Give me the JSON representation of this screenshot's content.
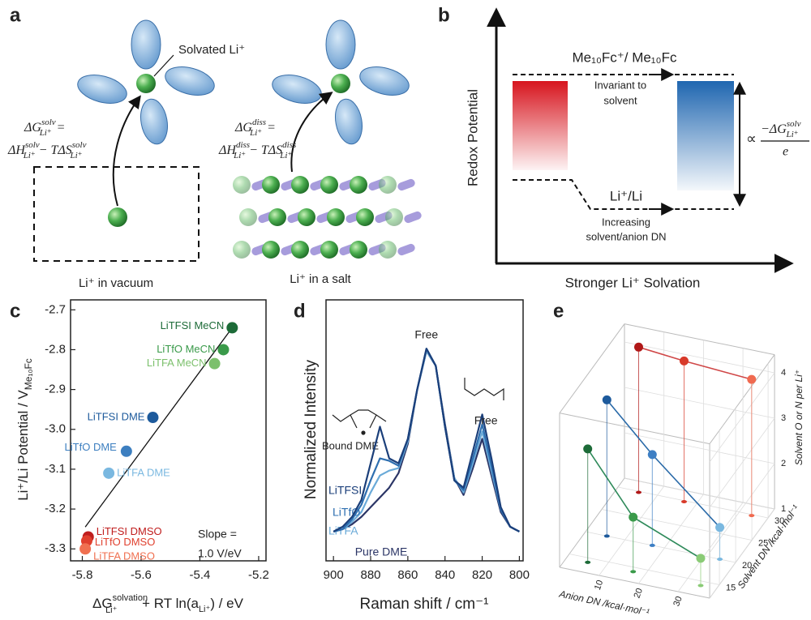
{
  "panel_labels": [
    "a",
    "b",
    "c",
    "d",
    "e"
  ],
  "diagram_a": {
    "solvated_label": "Solvated Li⁺",
    "eq_solv": [
      "ΔG",
      "solv",
      "Li⁺",
      "=",
      "ΔH",
      "solv",
      "Li⁺",
      "− TΔS",
      "solv",
      "Li⁺"
    ],
    "eq_diss": [
      "ΔG",
      "diss",
      "Li⁺",
      "=",
      "ΔH",
      "diss",
      "Li⁺",
      "− TΔS",
      "diss",
      "Li⁺"
    ],
    "vacuum_label": "Li⁺ in vacuum",
    "salt_label": "Li⁺ in a salt"
  },
  "diagram_b": {
    "ylabel": "Redox Potential",
    "xlabel": "Stronger Li⁺ Solvation",
    "top_couple": "Me₁₀Fc⁺/ Me₁₀Fc",
    "top_note": [
      "Invariant to",
      "solvent"
    ],
    "bottom_couple": "Li⁺/Li",
    "bottom_note": [
      "Increasing",
      "solvent/anion DN"
    ],
    "proportional": [
      "∝",
      "−ΔG",
      "solv",
      "Li⁺",
      "e"
    ]
  },
  "chart_data": [
    {
      "type": "scatter",
      "xlabel": [
        "ΔG",
        "solvation",
        "Li⁺",
        " + RT ln(a",
        "Li⁺",
        ") / eV"
      ],
      "ylabel": "Li⁺/Li Potential / V",
      "ylabel_sub": "Me₁₀Fc",
      "xlim": [
        -5.84,
        -5.175
      ],
      "ylim": [
        -3.33,
        -2.675
      ],
      "xticks": [
        -5.8,
        -5.6,
        -5.4,
        -5.2
      ],
      "yticks": [
        -3.3,
        -3.2,
        -3.1,
        {
          "value": -3,
          "label": "-3.0"
        },
        -2.9,
        -2.8,
        -2.7
      ],
      "series": [
        {
          "name": "LiTFSI MeCN",
          "color": "#1d6b38",
          "x": [
            -5.29
          ],
          "values": [
            -2.745
          ]
        },
        {
          "name": "LiTfO MeCN",
          "color": "#3a9a4a",
          "x": [
            -5.32
          ],
          "values": [
            -2.8
          ]
        },
        {
          "name": "LiTFA MeCN",
          "color": "#7cc06c",
          "x": [
            -5.35
          ],
          "values": [
            -2.835
          ]
        },
        {
          "name": "LiTFSI DME",
          "color": "#1d5a9c",
          "x": [
            -5.56
          ],
          "values": [
            -2.97
          ]
        },
        {
          "name": "LiTfO DME",
          "color": "#3d7fc0",
          "x": [
            -5.65
          ],
          "values": [
            -3.055
          ]
        },
        {
          "name": "LiTFA DME",
          "color": "#7ab8e0",
          "x": [
            -5.71
          ],
          "values": [
            -3.11
          ]
        },
        {
          "name": "LiTFSI DMSO",
          "color": "#c01e1e",
          "x": [
            -5.78
          ],
          "values": [
            -3.27
          ]
        },
        {
          "name": "LiTfO DMSO",
          "color": "#e0402e",
          "x": [
            -5.785
          ],
          "values": [
            -3.28
          ]
        },
        {
          "name": "LiTFA DMSO",
          "color": "#f07050",
          "x": [
            -5.79
          ],
          "values": [
            -3.3
          ]
        }
      ],
      "fit": {
        "x": [
          -5.79,
          -5.29
        ],
        "values": [
          -3.245,
          -2.745
        ]
      },
      "annotation": [
        "Slope =",
        "1.0 V/eV"
      ]
    },
    {
      "type": "line",
      "xlabel": "Raman shift / cm⁻¹",
      "ylabel": "Normalized Intensity",
      "x": [
        900,
        895,
        890,
        885,
        880,
        875,
        870,
        865,
        860,
        855,
        850,
        845,
        840,
        835,
        830,
        825,
        820,
        815,
        810,
        805,
        800
      ],
      "xlim": [
        904,
        798
      ],
      "xticks": [
        900,
        880,
        860,
        840,
        820,
        800
      ],
      "ylim": [
        0,
        1.07
      ],
      "series": [
        {
          "name": "Pure DME",
          "color": "#2b3566",
          "values": [
            0.12,
            0.13,
            0.15,
            0.18,
            0.22,
            0.26,
            0.3,
            0.36,
            0.48,
            0.7,
            0.86,
            0.8,
            0.56,
            0.34,
            0.27,
            0.38,
            0.5,
            0.35,
            0.2,
            0.14,
            0.12
          ]
        },
        {
          "name": "LiTFA",
          "color": "#6aaad8",
          "values": [
            0.12,
            0.13,
            0.16,
            0.2,
            0.28,
            0.35,
            0.37,
            0.38,
            0.49,
            0.7,
            0.86,
            0.8,
            0.55,
            0.34,
            0.28,
            0.4,
            0.53,
            0.37,
            0.21,
            0.14,
            0.12
          ]
        },
        {
          "name": "LiTfO",
          "color": "#2e6fb0",
          "values": [
            0.12,
            0.13,
            0.17,
            0.23,
            0.33,
            0.42,
            0.41,
            0.39,
            0.5,
            0.7,
            0.87,
            0.8,
            0.55,
            0.33,
            0.29,
            0.42,
            0.56,
            0.39,
            0.21,
            0.14,
            0.12
          ]
        },
        {
          "name": "LiTFSI",
          "color": "#1b3f7a",
          "values": [
            0.12,
            0.14,
            0.18,
            0.25,
            0.4,
            0.55,
            0.42,
            0.4,
            0.5,
            0.7,
            0.87,
            0.8,
            0.55,
            0.33,
            0.3,
            0.45,
            0.6,
            0.42,
            0.22,
            0.14,
            0.12
          ]
        }
      ],
      "annotations": [
        "Free",
        "Free",
        "Bound DME"
      ]
    },
    {
      "type": "scatter3d",
      "xlabel": "Anion DN /kcal·mol⁻¹",
      "ylabel": "Solvent DN /kcal·mol⁻¹",
      "zlabel": "Solvent O or N per Li⁺",
      "xlim": [
        0,
        38
      ],
      "ylim": [
        12,
        32
      ],
      "zlim": [
        1,
        4.4
      ],
      "xticks": [
        10,
        20,
        30
      ],
      "yticks": [
        15,
        20,
        25,
        30
      ],
      "zticks": [
        1,
        2,
        3,
        4
      ],
      "series": [
        {
          "color": "#d04848",
          "colors": [
            "#b01818",
            "#d83a2a",
            "#f06a50"
          ],
          "x": [
            5.4,
            16.9,
            34
          ],
          "y": [
            29.8,
            29.8,
            29.8
          ],
          "values": [
            4.2,
            4.1,
            4.0
          ]
        },
        {
          "color": "#2a6aa8",
          "colors": [
            "#1d5a9c",
            "#3d7fc4",
            "#7ab8e0"
          ],
          "x": [
            5.4,
            16.9,
            34
          ],
          "y": [
            20,
            20,
            20
          ],
          "values": [
            4.0,
            3.0,
            1.7
          ]
        },
        {
          "color": "#2e8a5a",
          "colors": [
            "#1d6b38",
            "#3a9a4a",
            "#8acb76"
          ],
          "x": [
            5.4,
            16.9,
            34
          ],
          "y": [
            14.1,
            14.1,
            14.1
          ],
          "values": [
            3.5,
            2.2,
            1.6
          ]
        }
      ]
    }
  ]
}
